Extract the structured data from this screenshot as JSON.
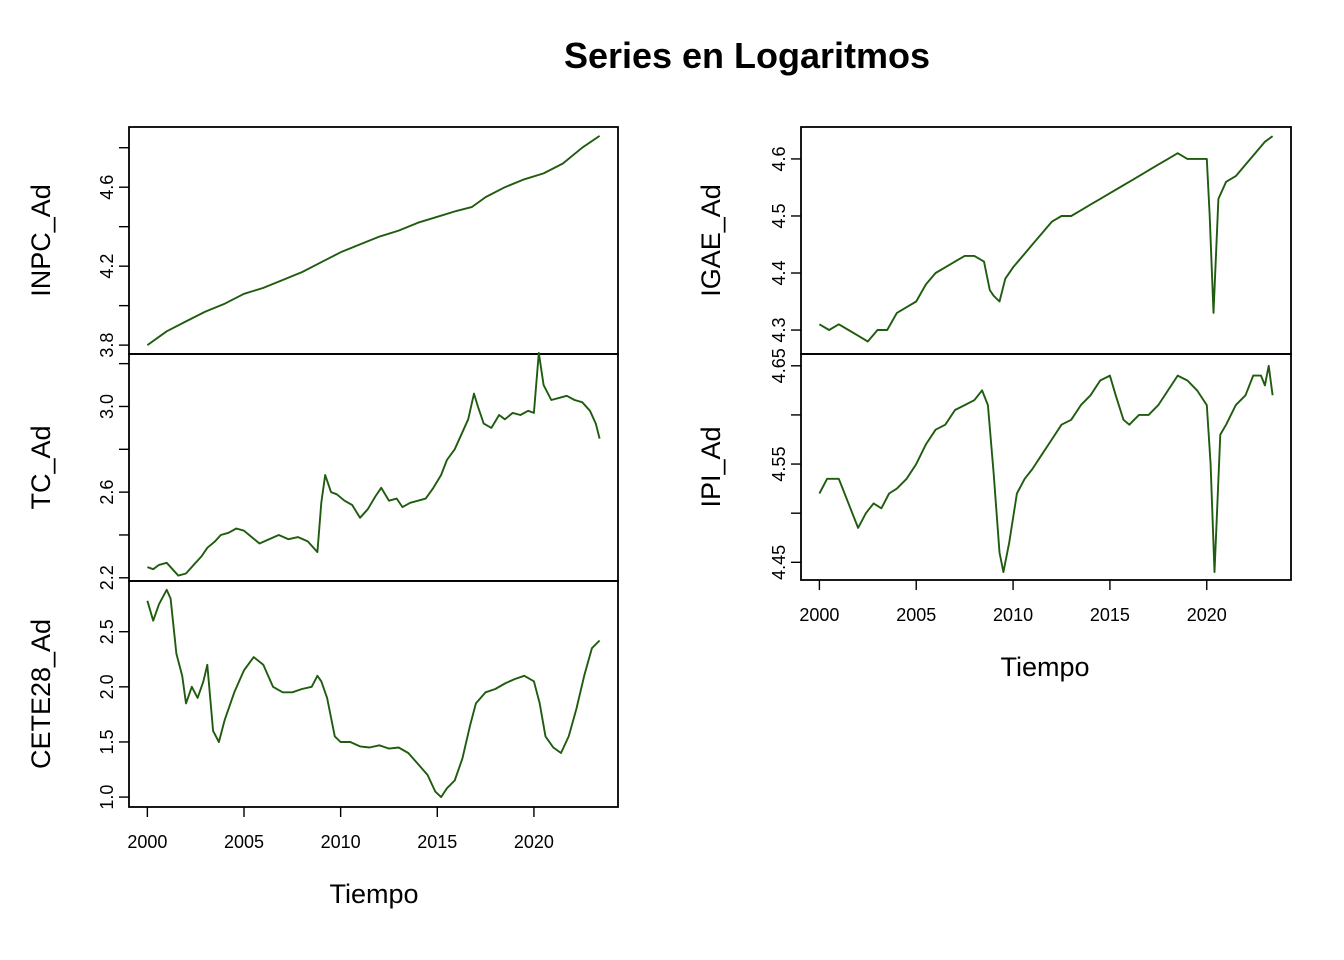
{
  "title": "Series en Logaritmos",
  "xlabel": "Tiempo",
  "line_color": "#1f5c0f",
  "chart_data": [
    {
      "type": "line",
      "ylabel": "INPC_Ad",
      "xlim": [
        1999.05,
        2024.35
      ],
      "ylim": [
        3.755,
        4.905
      ],
      "yticks": [
        "3.8",
        "4.2",
        "4.6"
      ],
      "yticks_minor": [
        4.0,
        4.4,
        4.8
      ],
      "x": [
        2000.0,
        2001.0,
        2002.0,
        2003.0,
        2004.0,
        2005.0,
        2006.0,
        2007.0,
        2008.0,
        2009.0,
        2010.0,
        2011.0,
        2012.0,
        2013.0,
        2014.0,
        2015.0,
        2016.0,
        2016.8,
        2017.5,
        2018.5,
        2019.5,
        2020.5,
        2021.5,
        2022.5,
        2023.4
      ],
      "y": [
        3.8,
        3.87,
        3.92,
        3.97,
        4.01,
        4.06,
        4.09,
        4.13,
        4.17,
        4.22,
        4.27,
        4.31,
        4.35,
        4.38,
        4.42,
        4.45,
        4.48,
        4.5,
        4.55,
        4.6,
        4.64,
        4.67,
        4.72,
        4.8,
        4.86
      ]
    },
    {
      "type": "line",
      "ylabel": "TC_Ad",
      "xlim": [
        1999.05,
        2024.35
      ],
      "ylim": [
        2.185,
        3.245
      ],
      "yticks": [
        "2.2",
        "2.6",
        "3.0"
      ],
      "yticks_minor": [
        2.4,
        2.8,
        3.2
      ],
      "x": [
        2000.0,
        2000.3,
        2000.6,
        2001.0,
        2001.3,
        2001.6,
        2002.0,
        2002.4,
        2002.8,
        2003.1,
        2003.5,
        2003.8,
        2004.2,
        2004.6,
        2005.0,
        2005.4,
        2005.8,
        2006.3,
        2006.8,
        2007.3,
        2007.8,
        2008.3,
        2008.8,
        2009.0,
        2009.2,
        2009.5,
        2009.8,
        2010.2,
        2010.6,
        2011.0,
        2011.4,
        2011.8,
        2012.1,
        2012.5,
        2012.9,
        2013.2,
        2013.6,
        2014.0,
        2014.4,
        2014.8,
        2015.2,
        2015.5,
        2015.9,
        2016.3,
        2016.6,
        2016.9,
        2017.1,
        2017.4,
        2017.8,
        2018.2,
        2018.5,
        2018.9,
        2019.3,
        2019.7,
        2020.0,
        2020.25,
        2020.5,
        2020.9,
        2021.3,
        2021.7,
        2022.1,
        2022.5,
        2022.9,
        2023.2,
        2023.4
      ],
      "y": [
        2.25,
        2.24,
        2.26,
        2.27,
        2.24,
        2.21,
        2.22,
        2.26,
        2.3,
        2.34,
        2.37,
        2.4,
        2.41,
        2.43,
        2.42,
        2.39,
        2.36,
        2.38,
        2.4,
        2.38,
        2.39,
        2.37,
        2.32,
        2.55,
        2.68,
        2.6,
        2.59,
        2.56,
        2.54,
        2.48,
        2.52,
        2.58,
        2.62,
        2.56,
        2.57,
        2.53,
        2.55,
        2.56,
        2.57,
        2.62,
        2.68,
        2.75,
        2.8,
        2.88,
        2.94,
        3.06,
        3.0,
        2.92,
        2.9,
        2.96,
        2.94,
        2.97,
        2.96,
        2.98,
        2.97,
        3.25,
        3.1,
        3.03,
        3.04,
        3.05,
        3.03,
        3.02,
        2.98,
        2.92,
        2.85
      ]
    },
    {
      "type": "line",
      "ylabel": "CETE28_Ad",
      "xlim": [
        1999.05,
        2024.35
      ],
      "ylim": [
        0.91,
        2.96
      ],
      "yticks": [
        "1.0",
        "1.5",
        "2.0",
        "2.5"
      ],
      "yticks_minor": [],
      "x": [
        2000.0,
        2000.3,
        2000.6,
        2001.0,
        2001.2,
        2001.5,
        2001.8,
        2002.0,
        2002.3,
        2002.6,
        2002.9,
        2003.1,
        2003.4,
        2003.7,
        2004.0,
        2004.5,
        2005.0,
        2005.5,
        2006.0,
        2006.5,
        2007.0,
        2007.5,
        2008.0,
        2008.5,
        2008.8,
        2009.0,
        2009.3,
        2009.7,
        2010.0,
        2010.5,
        2011.0,
        2011.5,
        2012.0,
        2012.5,
        2013.0,
        2013.5,
        2014.0,
        2014.5,
        2014.9,
        2015.2,
        2015.5,
        2015.9,
        2016.3,
        2016.7,
        2017.0,
        2017.5,
        2018.0,
        2018.5,
        2019.0,
        2019.5,
        2020.0,
        2020.3,
        2020.6,
        2021.0,
        2021.4,
        2021.8,
        2022.2,
        2022.6,
        2023.0,
        2023.4
      ],
      "y": [
        2.78,
        2.6,
        2.75,
        2.88,
        2.8,
        2.3,
        2.1,
        1.85,
        2.0,
        1.9,
        2.05,
        2.2,
        1.6,
        1.5,
        1.7,
        1.95,
        2.15,
        2.27,
        2.2,
        2.0,
        1.95,
        1.95,
        1.98,
        2.0,
        2.1,
        2.05,
        1.9,
        1.55,
        1.5,
        1.5,
        1.46,
        1.45,
        1.47,
        1.44,
        1.45,
        1.4,
        1.3,
        1.2,
        1.05,
        1.0,
        1.08,
        1.15,
        1.35,
        1.65,
        1.85,
        1.95,
        1.98,
        2.03,
        2.07,
        2.1,
        2.05,
        1.85,
        1.55,
        1.45,
        1.4,
        1.55,
        1.8,
        2.1,
        2.35,
        2.42
      ]
    },
    {
      "type": "line",
      "ylabel": "IGAE_Ad",
      "xlim": [
        1999.05,
        2024.35
      ],
      "ylim": [
        4.258,
        4.656
      ],
      "yticks": [
        "4.3",
        "4.4",
        "4.5",
        "4.6"
      ],
      "yticks_minor": [],
      "x": [
        2000.0,
        2000.5,
        2001.0,
        2001.5,
        2002.0,
        2002.5,
        2003.0,
        2003.5,
        2004.0,
        2004.5,
        2005.0,
        2005.5,
        2006.0,
        2006.5,
        2007.0,
        2007.5,
        2008.0,
        2008.5,
        2008.8,
        2009.0,
        2009.3,
        2009.6,
        2010.0,
        2010.5,
        2011.0,
        2011.5,
        2012.0,
        2012.5,
        2013.0,
        2013.5,
        2014.0,
        2014.5,
        2015.0,
        2015.5,
        2016.0,
        2016.5,
        2017.0,
        2017.5,
        2018.0,
        2018.5,
        2019.0,
        2019.5,
        2020.0,
        2020.15,
        2020.35,
        2020.6,
        2021.0,
        2021.5,
        2022.0,
        2022.5,
        2023.0,
        2023.4
      ],
      "y": [
        4.31,
        4.3,
        4.31,
        4.3,
        4.29,
        4.28,
        4.3,
        4.3,
        4.33,
        4.34,
        4.35,
        4.38,
        4.4,
        4.41,
        4.42,
        4.43,
        4.43,
        4.42,
        4.37,
        4.36,
        4.35,
        4.39,
        4.41,
        4.43,
        4.45,
        4.47,
        4.49,
        4.5,
        4.5,
        4.51,
        4.52,
        4.53,
        4.54,
        4.55,
        4.56,
        4.57,
        4.58,
        4.59,
        4.6,
        4.61,
        4.6,
        4.6,
        4.6,
        4.5,
        4.33,
        4.53,
        4.56,
        4.57,
        4.59,
        4.61,
        4.63,
        4.64
      ]
    },
    {
      "type": "line",
      "ylabel": "IPI_Ad",
      "xlim": [
        1999.05,
        2024.35
      ],
      "ylim": [
        4.432,
        4.662
      ],
      "yticks": [
        "4.45",
        "4.55",
        "4.65"
      ],
      "yticks_minor": [
        4.5,
        4.6
      ],
      "x": [
        2000.0,
        2000.4,
        2000.8,
        2001.0,
        2001.3,
        2001.6,
        2002.0,
        2002.4,
        2002.8,
        2003.2,
        2003.6,
        2004.0,
        2004.5,
        2005.0,
        2005.5,
        2006.0,
        2006.5,
        2007.0,
        2007.5,
        2008.0,
        2008.4,
        2008.7,
        2009.0,
        2009.3,
        2009.5,
        2009.8,
        2010.2,
        2010.6,
        2011.0,
        2011.5,
        2012.0,
        2012.5,
        2013.0,
        2013.5,
        2014.0,
        2014.5,
        2015.0,
        2015.3,
        2015.7,
        2016.0,
        2016.5,
        2017.0,
        2017.5,
        2018.0,
        2018.5,
        2019.0,
        2019.5,
        2020.0,
        2020.2,
        2020.4,
        2020.7,
        2021.0,
        2021.5,
        2022.0,
        2022.4,
        2022.8,
        2023.0,
        2023.2,
        2023.4
      ],
      "y": [
        4.52,
        4.535,
        4.535,
        4.535,
        4.52,
        4.505,
        4.485,
        4.5,
        4.51,
        4.505,
        4.52,
        4.525,
        4.535,
        4.55,
        4.57,
        4.585,
        4.59,
        4.605,
        4.61,
        4.615,
        4.625,
        4.61,
        4.54,
        4.46,
        4.44,
        4.47,
        4.52,
        4.535,
        4.545,
        4.56,
        4.575,
        4.59,
        4.595,
        4.61,
        4.62,
        4.635,
        4.64,
        4.62,
        4.595,
        4.59,
        4.6,
        4.6,
        4.61,
        4.625,
        4.64,
        4.635,
        4.625,
        4.61,
        4.55,
        4.44,
        4.58,
        4.59,
        4.61,
        4.62,
        4.64,
        4.64,
        4.63,
        4.65,
        4.62
      ]
    }
  ],
  "x_ticks": [
    "2000",
    "2005",
    "2010",
    "2015",
    "2020"
  ],
  "x_tick_values": [
    2000,
    2005,
    2010,
    2015,
    2020
  ]
}
